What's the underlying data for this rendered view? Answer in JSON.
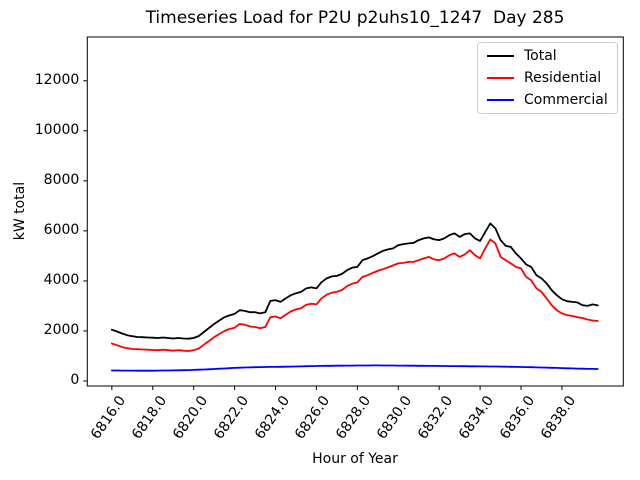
{
  "figure": {
    "title": "Timeseries Load for P2U p2uhs10_1247  Day 285",
    "xlabel": "Hour of Year",
    "ylabel": "kW total"
  },
  "chart_data": {
    "type": "line",
    "title": "Timeseries Load for P2U p2uhs10_1247  Day 285",
    "xlabel": "Hour of Year",
    "ylabel": "kW total",
    "legend_position": "upper right",
    "grid": false,
    "xlim": [
      6814.8,
      6841.0
    ],
    "ylim": [
      -200,
      13750
    ],
    "xticks": {
      "values": [
        6816,
        6818,
        6820,
        6822,
        6824,
        6826,
        6828,
        6830,
        6832,
        6834,
        6836,
        6838
      ],
      "labels": [
        "6816.0",
        "6818.0",
        "6820.0",
        "6822.0",
        "6824.0",
        "6826.0",
        "6828.0",
        "6830.0",
        "6832.0",
        "6834.0",
        "6836.0",
        "6838.0"
      ]
    },
    "yticks": {
      "values": [
        0,
        2000,
        4000,
        6000,
        8000,
        10000,
        12000
      ],
      "labels": [
        "0",
        "2000",
        "4000",
        "6000",
        "8000",
        "10000",
        "12000"
      ]
    },
    "x_hours": {
      "start": 6816.0,
      "step": 0.25,
      "count": 96
    },
    "series": [
      {
        "name": "Total",
        "color": "#000000",
        "values": [
          2050,
          1980,
          1900,
          1830,
          1790,
          1760,
          1750,
          1740,
          1730,
          1720,
          1740,
          1720,
          1700,
          1720,
          1700,
          1690,
          1720,
          1800,
          1960,
          2120,
          2280,
          2420,
          2550,
          2620,
          2680,
          2830,
          2800,
          2750,
          2750,
          2700,
          2750,
          3200,
          3230,
          3160,
          3300,
          3430,
          3510,
          3560,
          3700,
          3740,
          3700,
          3950,
          4100,
          4180,
          4200,
          4280,
          4430,
          4530,
          4560,
          4830,
          4900,
          4990,
          5100,
          5200,
          5260,
          5300,
          5430,
          5470,
          5500,
          5520,
          5630,
          5700,
          5740,
          5660,
          5630,
          5700,
          5830,
          5900,
          5760,
          5870,
          5900,
          5700,
          5600,
          5950,
          6300,
          6100,
          5630,
          5400,
          5360,
          5100,
          4900,
          4660,
          4560,
          4230,
          4100,
          3900,
          3630,
          3430,
          3270,
          3190,
          3160,
          3140,
          3030,
          3000,
          3060,
          3020
        ]
      },
      {
        "name": "Residential",
        "color": "#ff0000",
        "values": [
          1500,
          1430,
          1360,
          1310,
          1280,
          1270,
          1260,
          1250,
          1240,
          1230,
          1250,
          1230,
          1210,
          1230,
          1210,
          1200,
          1230,
          1300,
          1450,
          1600,
          1750,
          1880,
          2000,
          2080,
          2130,
          2280,
          2250,
          2180,
          2160,
          2110,
          2160,
          2550,
          2580,
          2510,
          2650,
          2780,
          2860,
          2910,
          3050,
          3090,
          3060,
          3300,
          3450,
          3530,
          3560,
          3640,
          3790,
          3890,
          3940,
          4160,
          4230,
          4320,
          4400,
          4470,
          4540,
          4620,
          4700,
          4720,
          4760,
          4760,
          4830,
          4900,
          4960,
          4860,
          4830,
          4900,
          5030,
          5100,
          4960,
          5060,
          5230,
          5030,
          4900,
          5300,
          5660,
          5500,
          4960,
          4830,
          4700,
          4560,
          4500,
          4160,
          4030,
          3700,
          3560,
          3300,
          3030,
          2830,
          2700,
          2630,
          2600,
          2550,
          2520,
          2460,
          2420,
          2400
        ]
      },
      {
        "name": "Commercial",
        "color": "#0000ff",
        "values": [
          420,
          418,
          416,
          415,
          414,
          413,
          412,
          412,
          413,
          415,
          418,
          420,
          424,
          428,
          432,
          436,
          442,
          450,
          458,
          468,
          478,
          490,
          500,
          512,
          522,
          530,
          538,
          545,
          550,
          555,
          558,
          562,
          565,
          568,
          572,
          576,
          580,
          585,
          590,
          595,
          598,
          602,
          606,
          608,
          610,
          612,
          614,
          616,
          618,
          620,
          621,
          622,
          622,
          621,
          620,
          618,
          616,
          614,
          612,
          610,
          608,
          606,
          604,
          602,
          600,
          598,
          596,
          594,
          592,
          590,
          588,
          586,
          584,
          582,
          580,
          578,
          575,
          572,
          568,
          564,
          560,
          555,
          550,
          545,
          540,
          534,
          528,
          522,
          515,
          508,
          502,
          496,
          490,
          485,
          482,
          480
        ]
      }
    ]
  }
}
